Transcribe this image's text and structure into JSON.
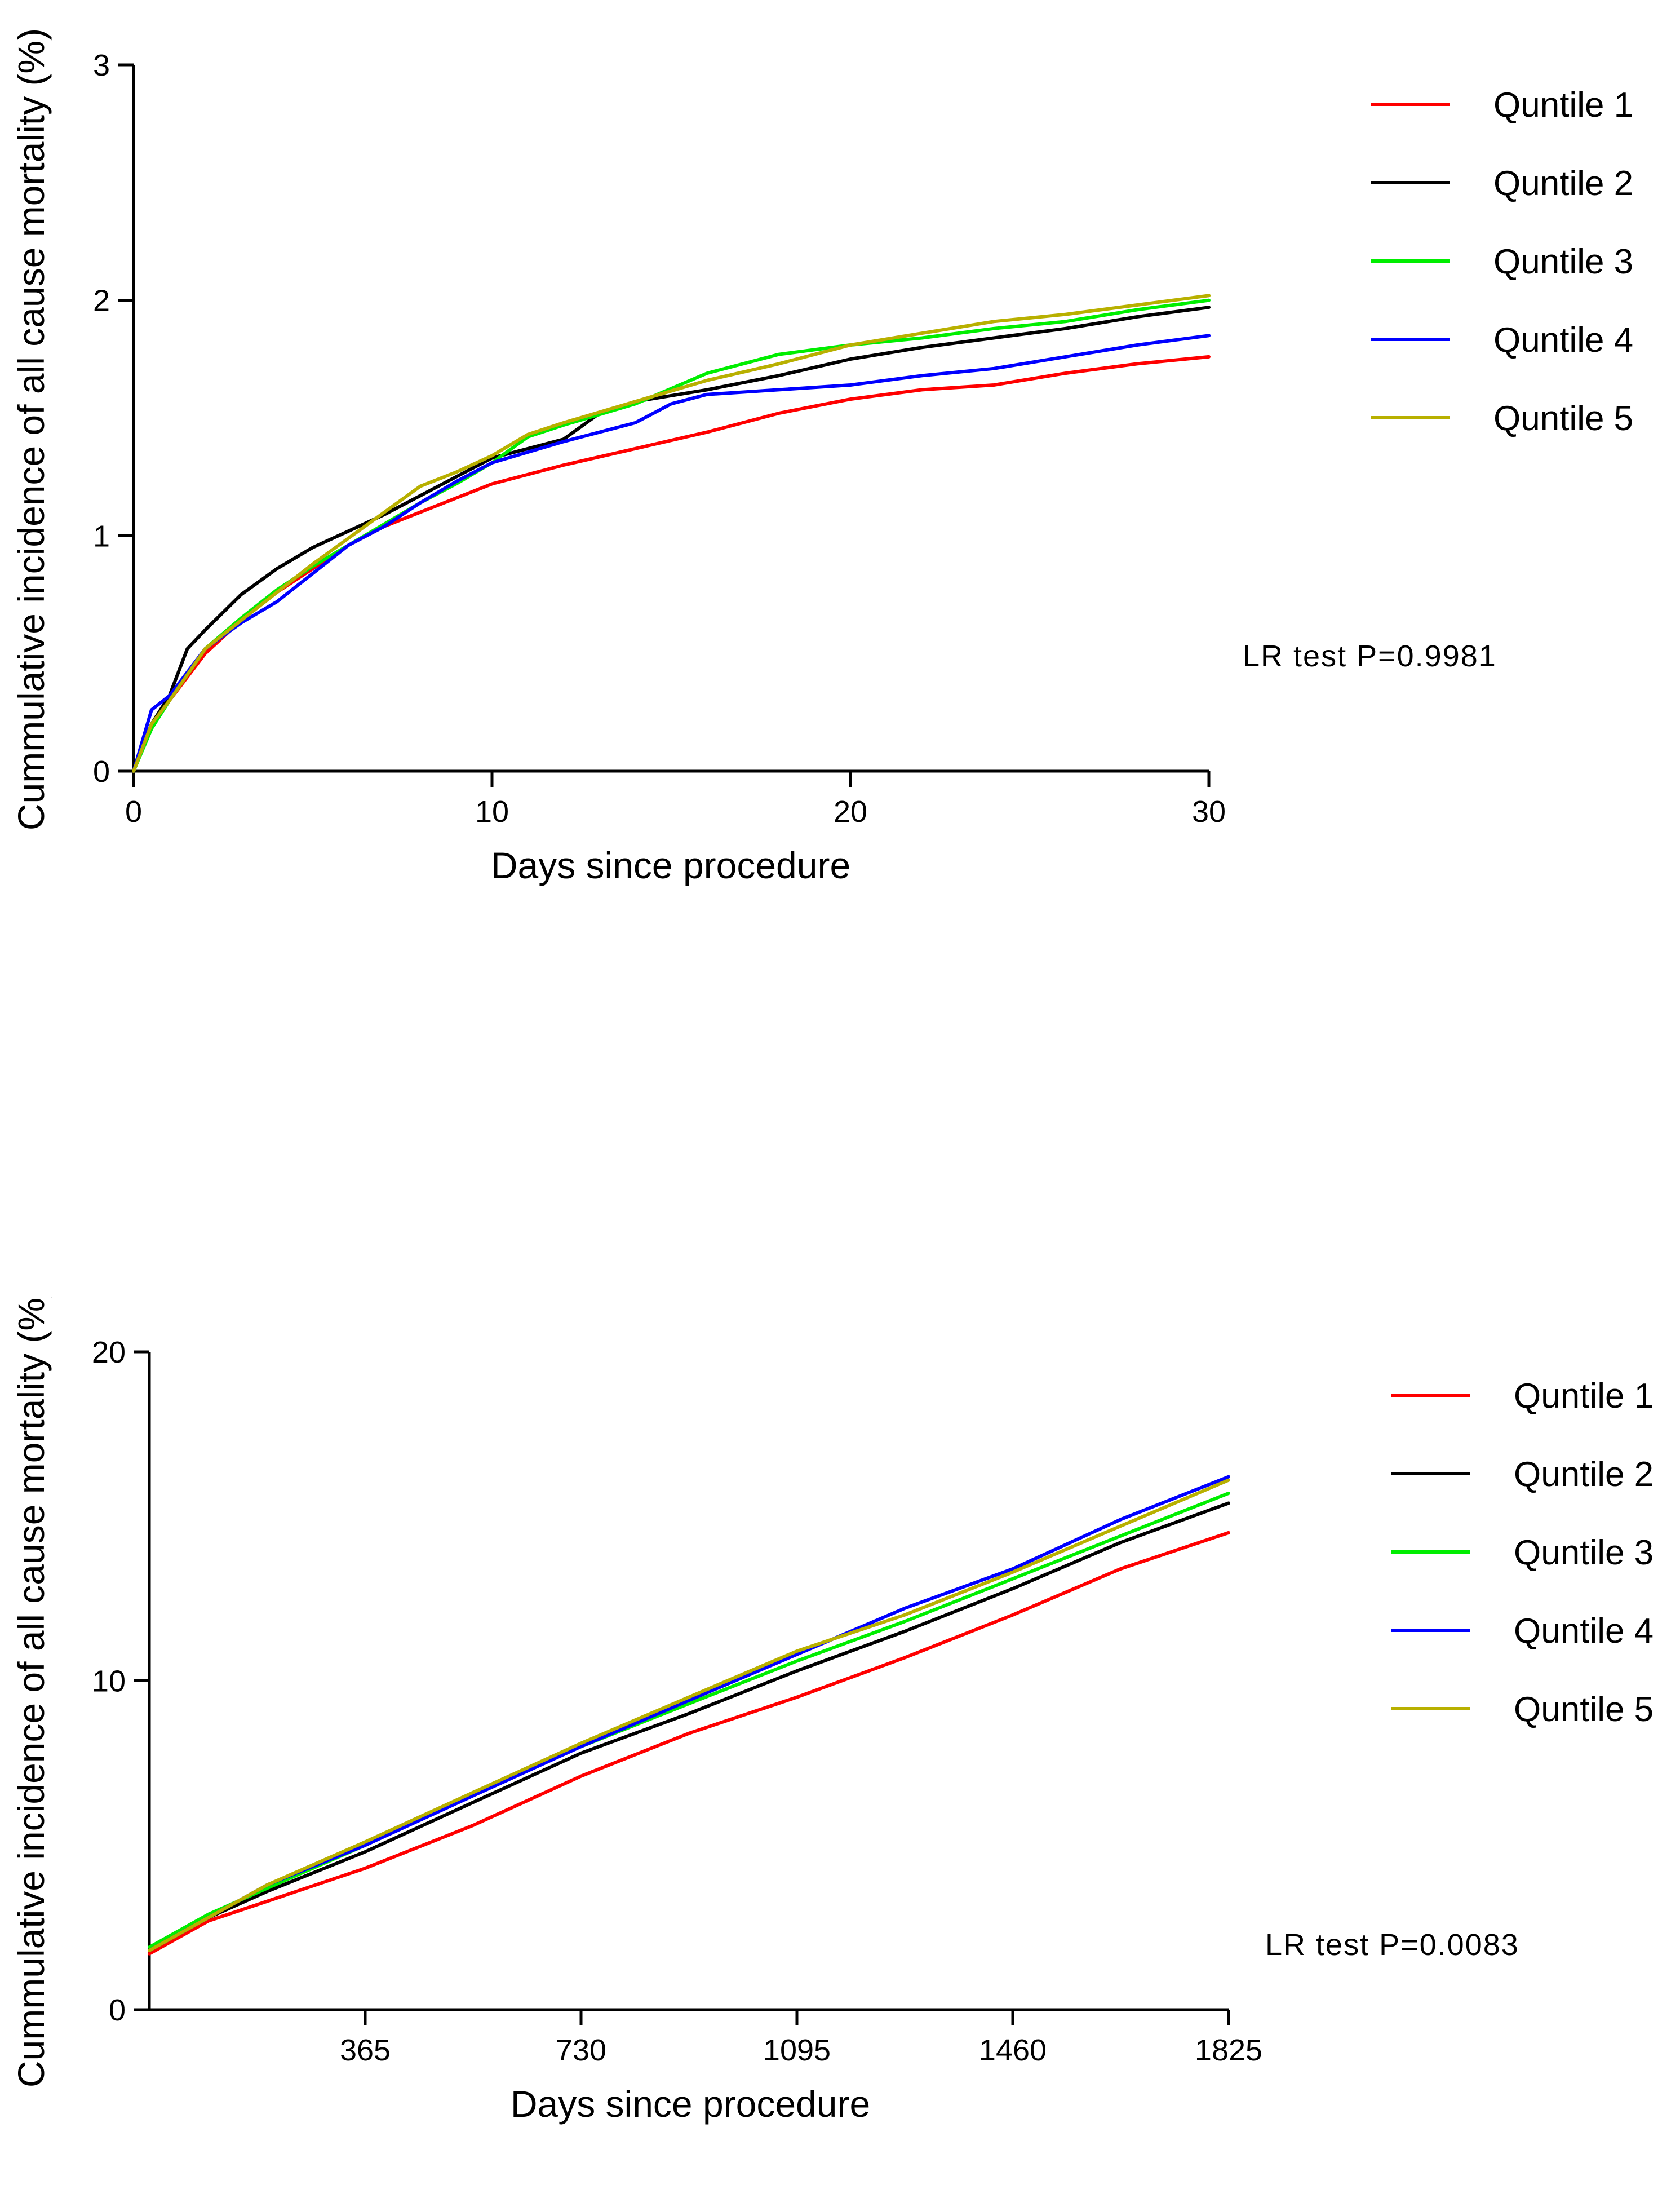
{
  "chart_data": [
    {
      "type": "line",
      "title": "",
      "xlabel": "Days  since procedure",
      "ylabel": "Cummulative incidence of all cause mortality (%)",
      "xlim": [
        0,
        30
      ],
      "ylim": [
        0,
        3
      ],
      "xticks": [
        0,
        10,
        20,
        30
      ],
      "xtick_labels": [
        "0",
        "10",
        "20",
        "30"
      ],
      "yticks": [
        0,
        1,
        2,
        3
      ],
      "ytick_labels": [
        "0",
        "1",
        "2",
        "3"
      ],
      "grid": false,
      "legend_position": "top-right",
      "annotation": "LR test P=0.9981",
      "series": [
        {
          "name": "Quntile 1",
          "color": "#ff0000",
          "x": [
            0,
            0.5,
            1,
            2,
            3,
            4,
            5,
            6,
            7,
            8,
            9,
            10,
            12,
            14,
            16,
            18,
            20,
            22,
            24,
            26,
            28,
            30
          ],
          "y": [
            0,
            0.2,
            0.3,
            0.5,
            0.64,
            0.76,
            0.86,
            0.96,
            1.04,
            1.1,
            1.16,
            1.22,
            1.3,
            1.37,
            1.44,
            1.52,
            1.58,
            1.62,
            1.64,
            1.69,
            1.73,
            1.76
          ]
        },
        {
          "name": "Quntile 2",
          "color": "#000000",
          "x": [
            0,
            0.5,
            1,
            1.5,
            2,
            3,
            4,
            5,
            6,
            7,
            8,
            9,
            10,
            12,
            13,
            14,
            16,
            18,
            20,
            22,
            24,
            26,
            28,
            30
          ],
          "y": [
            0,
            0.2,
            0.32,
            0.52,
            0.6,
            0.75,
            0.86,
            0.95,
            1.02,
            1.09,
            1.17,
            1.25,
            1.33,
            1.41,
            1.52,
            1.57,
            1.62,
            1.68,
            1.75,
            1.8,
            1.84,
            1.88,
            1.93,
            1.97
          ]
        },
        {
          "name": "Quntile 3",
          "color": "#00ee00",
          "x": [
            0,
            0.5,
            1,
            2,
            3,
            4,
            5,
            6,
            7,
            8,
            9,
            10,
            11,
            12,
            14,
            16,
            18,
            20,
            22,
            24,
            26,
            28,
            30
          ],
          "y": [
            0,
            0.18,
            0.3,
            0.52,
            0.65,
            0.77,
            0.87,
            0.96,
            1.05,
            1.14,
            1.22,
            1.31,
            1.42,
            1.47,
            1.56,
            1.69,
            1.77,
            1.81,
            1.84,
            1.88,
            1.91,
            1.96,
            2.0
          ]
        },
        {
          "name": "Quntile 4",
          "color": "#0000ff",
          "x": [
            0,
            0.5,
            1,
            2,
            3,
            4,
            5,
            6,
            7,
            8,
            9,
            10,
            12,
            14,
            15,
            16,
            18,
            20,
            22,
            24,
            26,
            28,
            30
          ],
          "y": [
            0,
            0.26,
            0.32,
            0.52,
            0.63,
            0.72,
            0.84,
            0.96,
            1.04,
            1.14,
            1.23,
            1.31,
            1.4,
            1.48,
            1.56,
            1.6,
            1.62,
            1.64,
            1.68,
            1.71,
            1.76,
            1.81,
            1.85
          ]
        },
        {
          "name": "Quntile 5",
          "color": "#b8b000",
          "x": [
            0,
            0.5,
            1,
            2,
            3,
            4,
            5,
            6,
            7,
            8,
            9,
            10,
            11,
            12,
            14,
            16,
            18,
            20,
            22,
            24,
            26,
            28,
            30
          ],
          "y": [
            0,
            0.2,
            0.3,
            0.52,
            0.64,
            0.76,
            0.88,
            0.99,
            1.1,
            1.21,
            1.27,
            1.34,
            1.43,
            1.48,
            1.57,
            1.66,
            1.73,
            1.81,
            1.86,
            1.91,
            1.94,
            1.98,
            2.02
          ]
        }
      ]
    },
    {
      "type": "line",
      "title": "",
      "xlabel": "Days since procedure",
      "ylabel": "Cummulative incidence of all cause mortality (%)",
      "xlim": [
        0,
        1825
      ],
      "ylim": [
        0,
        20
      ],
      "xticks": [
        365,
        730,
        1095,
        1460,
        1825
      ],
      "xtick_labels": [
        "365",
        "730",
        "1095",
        "1460",
        "1825"
      ],
      "yticks": [
        0,
        10,
        20
      ],
      "ytick_labels": [
        "0",
        "10",
        "20"
      ],
      "grid": false,
      "legend_position": "top-right",
      "annotation": "LR test P=0.0083",
      "series": [
        {
          "name": "Quntile 1",
          "color": "#ff0000",
          "x": [
            0,
            100,
            200,
            365,
            547,
            730,
            912,
            1095,
            1277,
            1460,
            1642,
            1825
          ],
          "y": [
            1.7,
            2.7,
            3.3,
            4.3,
            5.6,
            7.1,
            8.4,
            9.5,
            10.7,
            12.0,
            13.4,
            14.5
          ]
        },
        {
          "name": "Quntile 2",
          "color": "#000000",
          "x": [
            0,
            100,
            200,
            365,
            547,
            730,
            912,
            1095,
            1277,
            1460,
            1642,
            1825
          ],
          "y": [
            1.8,
            2.8,
            3.6,
            4.8,
            6.3,
            7.8,
            9.0,
            10.3,
            11.5,
            12.8,
            14.2,
            15.4
          ]
        },
        {
          "name": "Quntile 3",
          "color": "#00ee00",
          "x": [
            0,
            100,
            200,
            365,
            547,
            730,
            912,
            1095,
            1277,
            1460,
            1642,
            1825
          ],
          "y": [
            1.9,
            2.9,
            3.7,
            5.0,
            6.6,
            8.0,
            9.3,
            10.6,
            11.8,
            13.1,
            14.4,
            15.7
          ]
        },
        {
          "name": "Quntile 4",
          "color": "#0000ff",
          "x": [
            0,
            100,
            200,
            365,
            547,
            730,
            912,
            1095,
            1277,
            1460,
            1642,
            1825
          ],
          "y": [
            1.8,
            2.8,
            3.8,
            5.0,
            6.5,
            8.0,
            9.4,
            10.8,
            12.2,
            13.4,
            14.9,
            16.2
          ]
        },
        {
          "name": "Quntile 5",
          "color": "#b8b000",
          "x": [
            0,
            100,
            200,
            365,
            547,
            730,
            912,
            1095,
            1277,
            1460,
            1642,
            1825
          ],
          "y": [
            1.8,
            2.8,
            3.8,
            5.1,
            6.6,
            8.1,
            9.5,
            10.9,
            12.0,
            13.3,
            14.7,
            16.1
          ]
        }
      ]
    }
  ]
}
